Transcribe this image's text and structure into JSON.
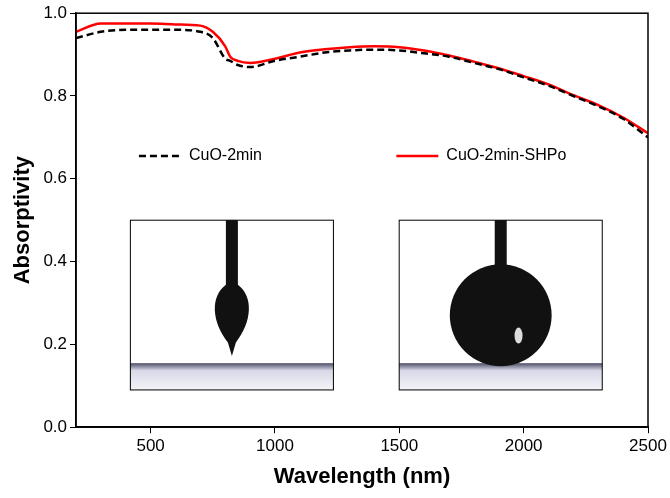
{
  "chart_data": {
    "type": "line",
    "x_label": "Wavelength (nm)",
    "y_label": "Absorptivity",
    "x": [
      200,
      300,
      400,
      500,
      600,
      700,
      750,
      800,
      820,
      850,
      900,
      1000,
      1100,
      1200,
      1300,
      1400,
      1500,
      1600,
      1700,
      1800,
      1900,
      2000,
      2100,
      2200,
      2300,
      2400,
      2500
    ],
    "series": [
      {
        "name": "CuO-2min",
        "color": "#000000",
        "line_style": "dashed",
        "values": [
          0.94,
          0.955,
          0.96,
          0.96,
          0.96,
          0.955,
          0.94,
          0.89,
          0.885,
          0.875,
          0.87,
          0.885,
          0.895,
          0.905,
          0.91,
          0.912,
          0.91,
          0.903,
          0.895,
          0.88,
          0.865,
          0.845,
          0.825,
          0.8,
          0.775,
          0.745,
          0.7
        ]
      },
      {
        "name": "CuO-2min-SHPo",
        "color": "#ff0000",
        "line_style": "solid",
        "values": [
          0.955,
          0.975,
          0.975,
          0.975,
          0.973,
          0.97,
          0.955,
          0.92,
          0.895,
          0.885,
          0.88,
          0.89,
          0.905,
          0.913,
          0.918,
          0.92,
          0.918,
          0.91,
          0.898,
          0.883,
          0.867,
          0.848,
          0.828,
          0.802,
          0.778,
          0.748,
          0.71
        ]
      }
    ],
    "xlim": [
      200,
      2500
    ],
    "xticks": [
      500,
      1000,
      1500,
      2000,
      2500
    ],
    "ylim": [
      0,
      1.0
    ],
    "yticks": [
      {
        "value": 0,
        "label": "0.0"
      },
      {
        "value": 0.2,
        "label": "0.2"
      },
      {
        "value": 0.4,
        "label": "0.4"
      },
      {
        "value": 0.6,
        "label": "0.6"
      },
      {
        "value": 0.8,
        "label": "0.8"
      },
      {
        "value": 1.0,
        "label": "1.0"
      }
    ],
    "grid": false,
    "legend": "center"
  }
}
